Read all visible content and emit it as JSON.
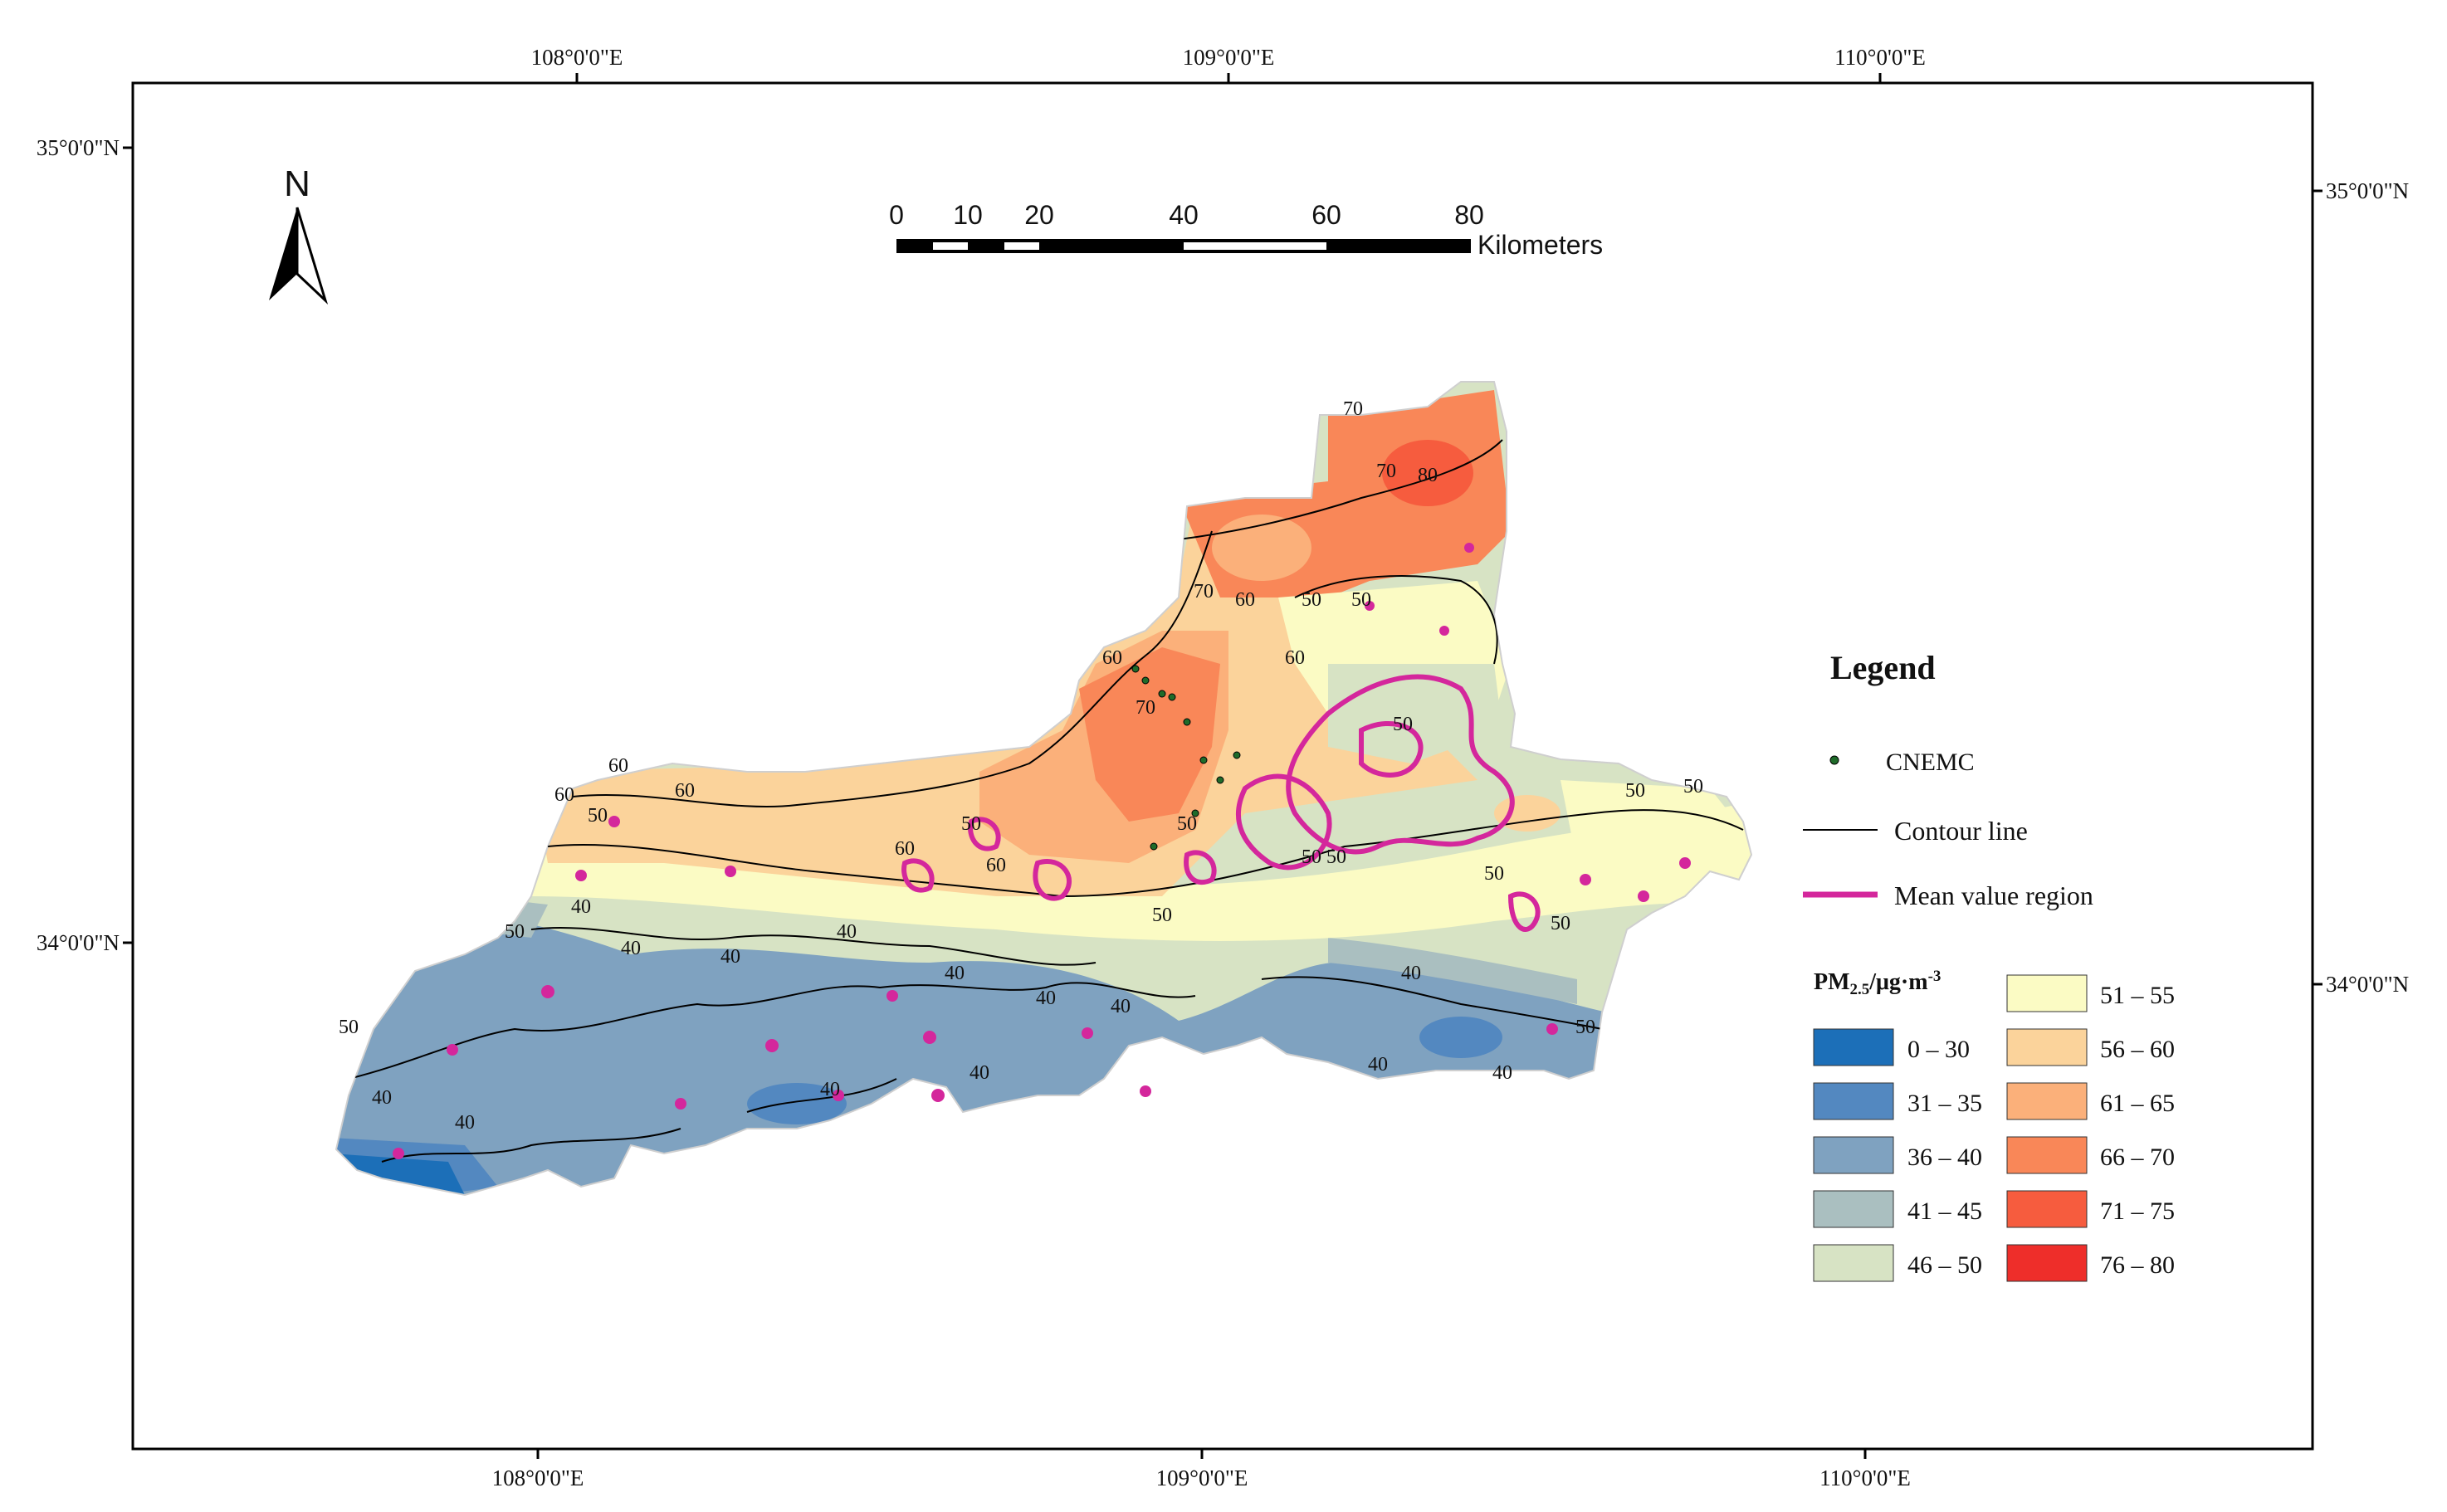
{
  "graticule": {
    "top_lon": [
      "108°0'0\"E",
      "109°0'0\"E",
      "110°0'0\"E"
    ],
    "bottom_lon": [
      "108°0'0\"E",
      "109°0'0\"E",
      "110°0'0\"E"
    ],
    "left_lat": [
      "35°0'0\"N",
      "34°0'0\"N"
    ],
    "right_lat": [
      "35°0'0\"N",
      "34°0'0\"N"
    ]
  },
  "north_arrow": {
    "letter": "N",
    "icon": "north-arrow-icon"
  },
  "scale_bar": {
    "ticks": [
      "0",
      "10",
      "20",
      "40",
      "60",
      "80"
    ],
    "unit": "Kilometers"
  },
  "legend": {
    "title": "Legend",
    "items": [
      {
        "label": "CNEMC",
        "icon": "station-dot-icon",
        "color": "#1f6b2a"
      },
      {
        "label": "Contour line",
        "icon": "contour-line-icon",
        "color": "#000000"
      },
      {
        "label": "Mean value region",
        "icon": "mean-region-icon",
        "color": "#d4279c"
      }
    ],
    "pm_title": {
      "main": "PM",
      "sub": "2.5",
      "unit": "/μg·m",
      "sup": "-3"
    },
    "classes": [
      {
        "label": "0 – 30",
        "color": "#1c6fb8"
      },
      {
        "label": "31 – 35",
        "color": "#5388c0"
      },
      {
        "label": "36 – 40",
        "color": "#7fa2c0"
      },
      {
        "label": "41 – 45",
        "color": "#aabfc0"
      },
      {
        "label": "46 – 50",
        "color": "#d7e3c4"
      },
      {
        "label": "51 – 55",
        "color": "#fbfbc4"
      },
      {
        "label": "56 – 60",
        "color": "#fbd39b"
      },
      {
        "label": "61 – 65",
        "color": "#fbb07a"
      },
      {
        "label": "66 – 70",
        "color": "#f98758"
      },
      {
        "label": "71 – 75",
        "color": "#f65c3e"
      },
      {
        "label": "76 – 80",
        "color": "#ee2e2a"
      }
    ]
  },
  "contour_labels": [
    "70",
    "70",
    "80",
    "70",
    "60",
    "70",
    "60",
    "50",
    "60",
    "60",
    "60",
    "60",
    "50",
    "50",
    "60",
    "50",
    "60",
    "50",
    "50",
    "40",
    "40",
    "40",
    "40",
    "40",
    "40",
    "40",
    "40",
    "40",
    "40",
    "40",
    "40",
    "50",
    "50",
    "50",
    "50",
    "50",
    "50",
    "50",
    "50",
    "50",
    "50",
    "40",
    "40"
  ]
}
